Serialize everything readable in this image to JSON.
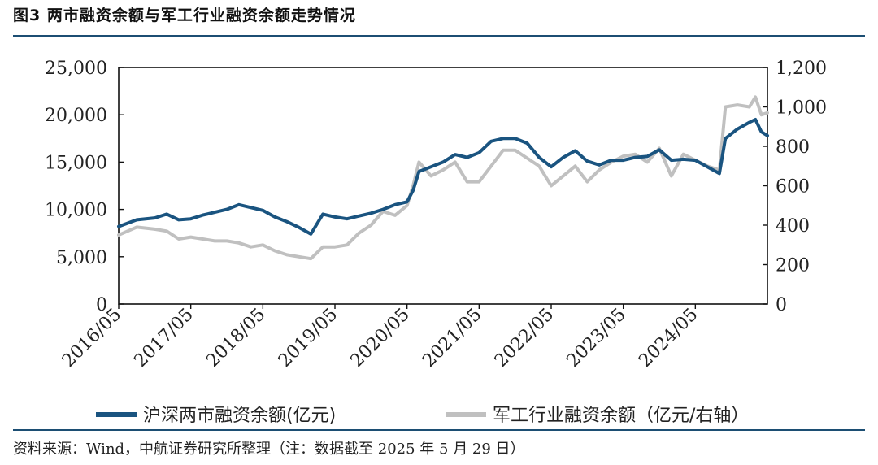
{
  "figure": {
    "title": "图3  两市融资余额与军工行业融资余额走势情况",
    "source": "资料来源：Wind，中航证券研究所整理（注：数据截至 2025 年 5 月 29 日）"
  },
  "chart_data": {
    "type": "line",
    "x_ticks": [
      "2016/05",
      "2017/05",
      "2018/05",
      "2019/05",
      "2020/05",
      "2021/05",
      "2022/05",
      "2023/05",
      "2024/05"
    ],
    "x_range": [
      "2016/05",
      "2025/05"
    ],
    "y_left": {
      "ticks": [
        "0",
        "5,000",
        "10,000",
        "15,000",
        "20,000",
        "25,000"
      ],
      "range": [
        0,
        25000
      ]
    },
    "y_right": {
      "ticks": [
        "0",
        "200",
        "400",
        "600",
        "800",
        "1,000",
        "1,200"
      ],
      "range": [
        0,
        1200
      ]
    },
    "legend_position": "bottom",
    "grid": false,
    "series": [
      {
        "name": "沪深两市融资余额(亿元)",
        "axis": "left",
        "color": "#1a5480",
        "points": [
          [
            "2016/05",
            8200
          ],
          [
            "2016/08",
            8900
          ],
          [
            "2016/11",
            9100
          ],
          [
            "2017/01",
            9500
          ],
          [
            "2017/03",
            8900
          ],
          [
            "2017/05",
            9000
          ],
          [
            "2017/07",
            9400
          ],
          [
            "2017/09",
            9700
          ],
          [
            "2017/11",
            10000
          ],
          [
            "2018/01",
            10500
          ],
          [
            "2018/03",
            10200
          ],
          [
            "2018/05",
            9900
          ],
          [
            "2018/07",
            9200
          ],
          [
            "2018/09",
            8700
          ],
          [
            "2018/11",
            8100
          ],
          [
            "2019/01",
            7400
          ],
          [
            "2019/03",
            9500
          ],
          [
            "2019/05",
            9200
          ],
          [
            "2019/07",
            9000
          ],
          [
            "2019/09",
            9300
          ],
          [
            "2019/11",
            9600
          ],
          [
            "2020/01",
            10000
          ],
          [
            "2020/03",
            10500
          ],
          [
            "2020/05",
            10800
          ],
          [
            "2020/06",
            12000
          ],
          [
            "2020/07",
            14000
          ],
          [
            "2020/09",
            14500
          ],
          [
            "2020/11",
            15000
          ],
          [
            "2021/01",
            15800
          ],
          [
            "2021/03",
            15500
          ],
          [
            "2021/05",
            16000
          ],
          [
            "2021/07",
            17200
          ],
          [
            "2021/09",
            17500
          ],
          [
            "2021/11",
            17500
          ],
          [
            "2022/01",
            17000
          ],
          [
            "2022/03",
            15500
          ],
          [
            "2022/05",
            14500
          ],
          [
            "2022/07",
            15500
          ],
          [
            "2022/09",
            16200
          ],
          [
            "2022/11",
            15100
          ],
          [
            "2023/01",
            14700
          ],
          [
            "2023/03",
            15200
          ],
          [
            "2023/05",
            15200
          ],
          [
            "2023/07",
            15500
          ],
          [
            "2023/09",
            15600
          ],
          [
            "2023/11",
            16300
          ],
          [
            "2024/01",
            15200
          ],
          [
            "2024/03",
            15300
          ],
          [
            "2024/05",
            15200
          ],
          [
            "2024/07",
            14500
          ],
          [
            "2024/09",
            13800
          ],
          [
            "2024/10",
            17500
          ],
          [
            "2024/12",
            18500
          ],
          [
            "2025/02",
            19200
          ],
          [
            "2025/03",
            19500
          ],
          [
            "2025/04",
            18200
          ],
          [
            "2025/05",
            17800
          ]
        ]
      },
      {
        "name": "军工行业融资余额（亿元/右轴）",
        "axis": "right",
        "color": "#c0c0c0",
        "points": [
          [
            "2016/05",
            350
          ],
          [
            "2016/08",
            390
          ],
          [
            "2016/11",
            380
          ],
          [
            "2017/01",
            370
          ],
          [
            "2017/03",
            330
          ],
          [
            "2017/05",
            340
          ],
          [
            "2017/07",
            330
          ],
          [
            "2017/09",
            320
          ],
          [
            "2017/11",
            320
          ],
          [
            "2018/01",
            310
          ],
          [
            "2018/03",
            290
          ],
          [
            "2018/05",
            300
          ],
          [
            "2018/07",
            270
          ],
          [
            "2018/09",
            250
          ],
          [
            "2018/11",
            240
          ],
          [
            "2019/01",
            230
          ],
          [
            "2019/03",
            290
          ],
          [
            "2019/05",
            290
          ],
          [
            "2019/07",
            300
          ],
          [
            "2019/09",
            360
          ],
          [
            "2019/11",
            400
          ],
          [
            "2020/01",
            470
          ],
          [
            "2020/03",
            450
          ],
          [
            "2020/05",
            500
          ],
          [
            "2020/06",
            600
          ],
          [
            "2020/07",
            720
          ],
          [
            "2020/09",
            650
          ],
          [
            "2020/11",
            680
          ],
          [
            "2021/01",
            720
          ],
          [
            "2021/03",
            620
          ],
          [
            "2021/05",
            620
          ],
          [
            "2021/07",
            700
          ],
          [
            "2021/09",
            780
          ],
          [
            "2021/11",
            780
          ],
          [
            "2022/01",
            740
          ],
          [
            "2022/03",
            700
          ],
          [
            "2022/05",
            600
          ],
          [
            "2022/07",
            650
          ],
          [
            "2022/09",
            700
          ],
          [
            "2022/11",
            620
          ],
          [
            "2023/01",
            680
          ],
          [
            "2023/03",
            720
          ],
          [
            "2023/05",
            750
          ],
          [
            "2023/07",
            760
          ],
          [
            "2023/09",
            720
          ],
          [
            "2023/11",
            790
          ],
          [
            "2024/01",
            650
          ],
          [
            "2024/03",
            760
          ],
          [
            "2024/05",
            730
          ],
          [
            "2024/07",
            700
          ],
          [
            "2024/09",
            680
          ],
          [
            "2024/10",
            1000
          ],
          [
            "2024/12",
            1010
          ],
          [
            "2025/02",
            1000
          ],
          [
            "2025/03",
            1050
          ],
          [
            "2025/04",
            960
          ],
          [
            "2025/05",
            970
          ]
        ]
      }
    ]
  }
}
